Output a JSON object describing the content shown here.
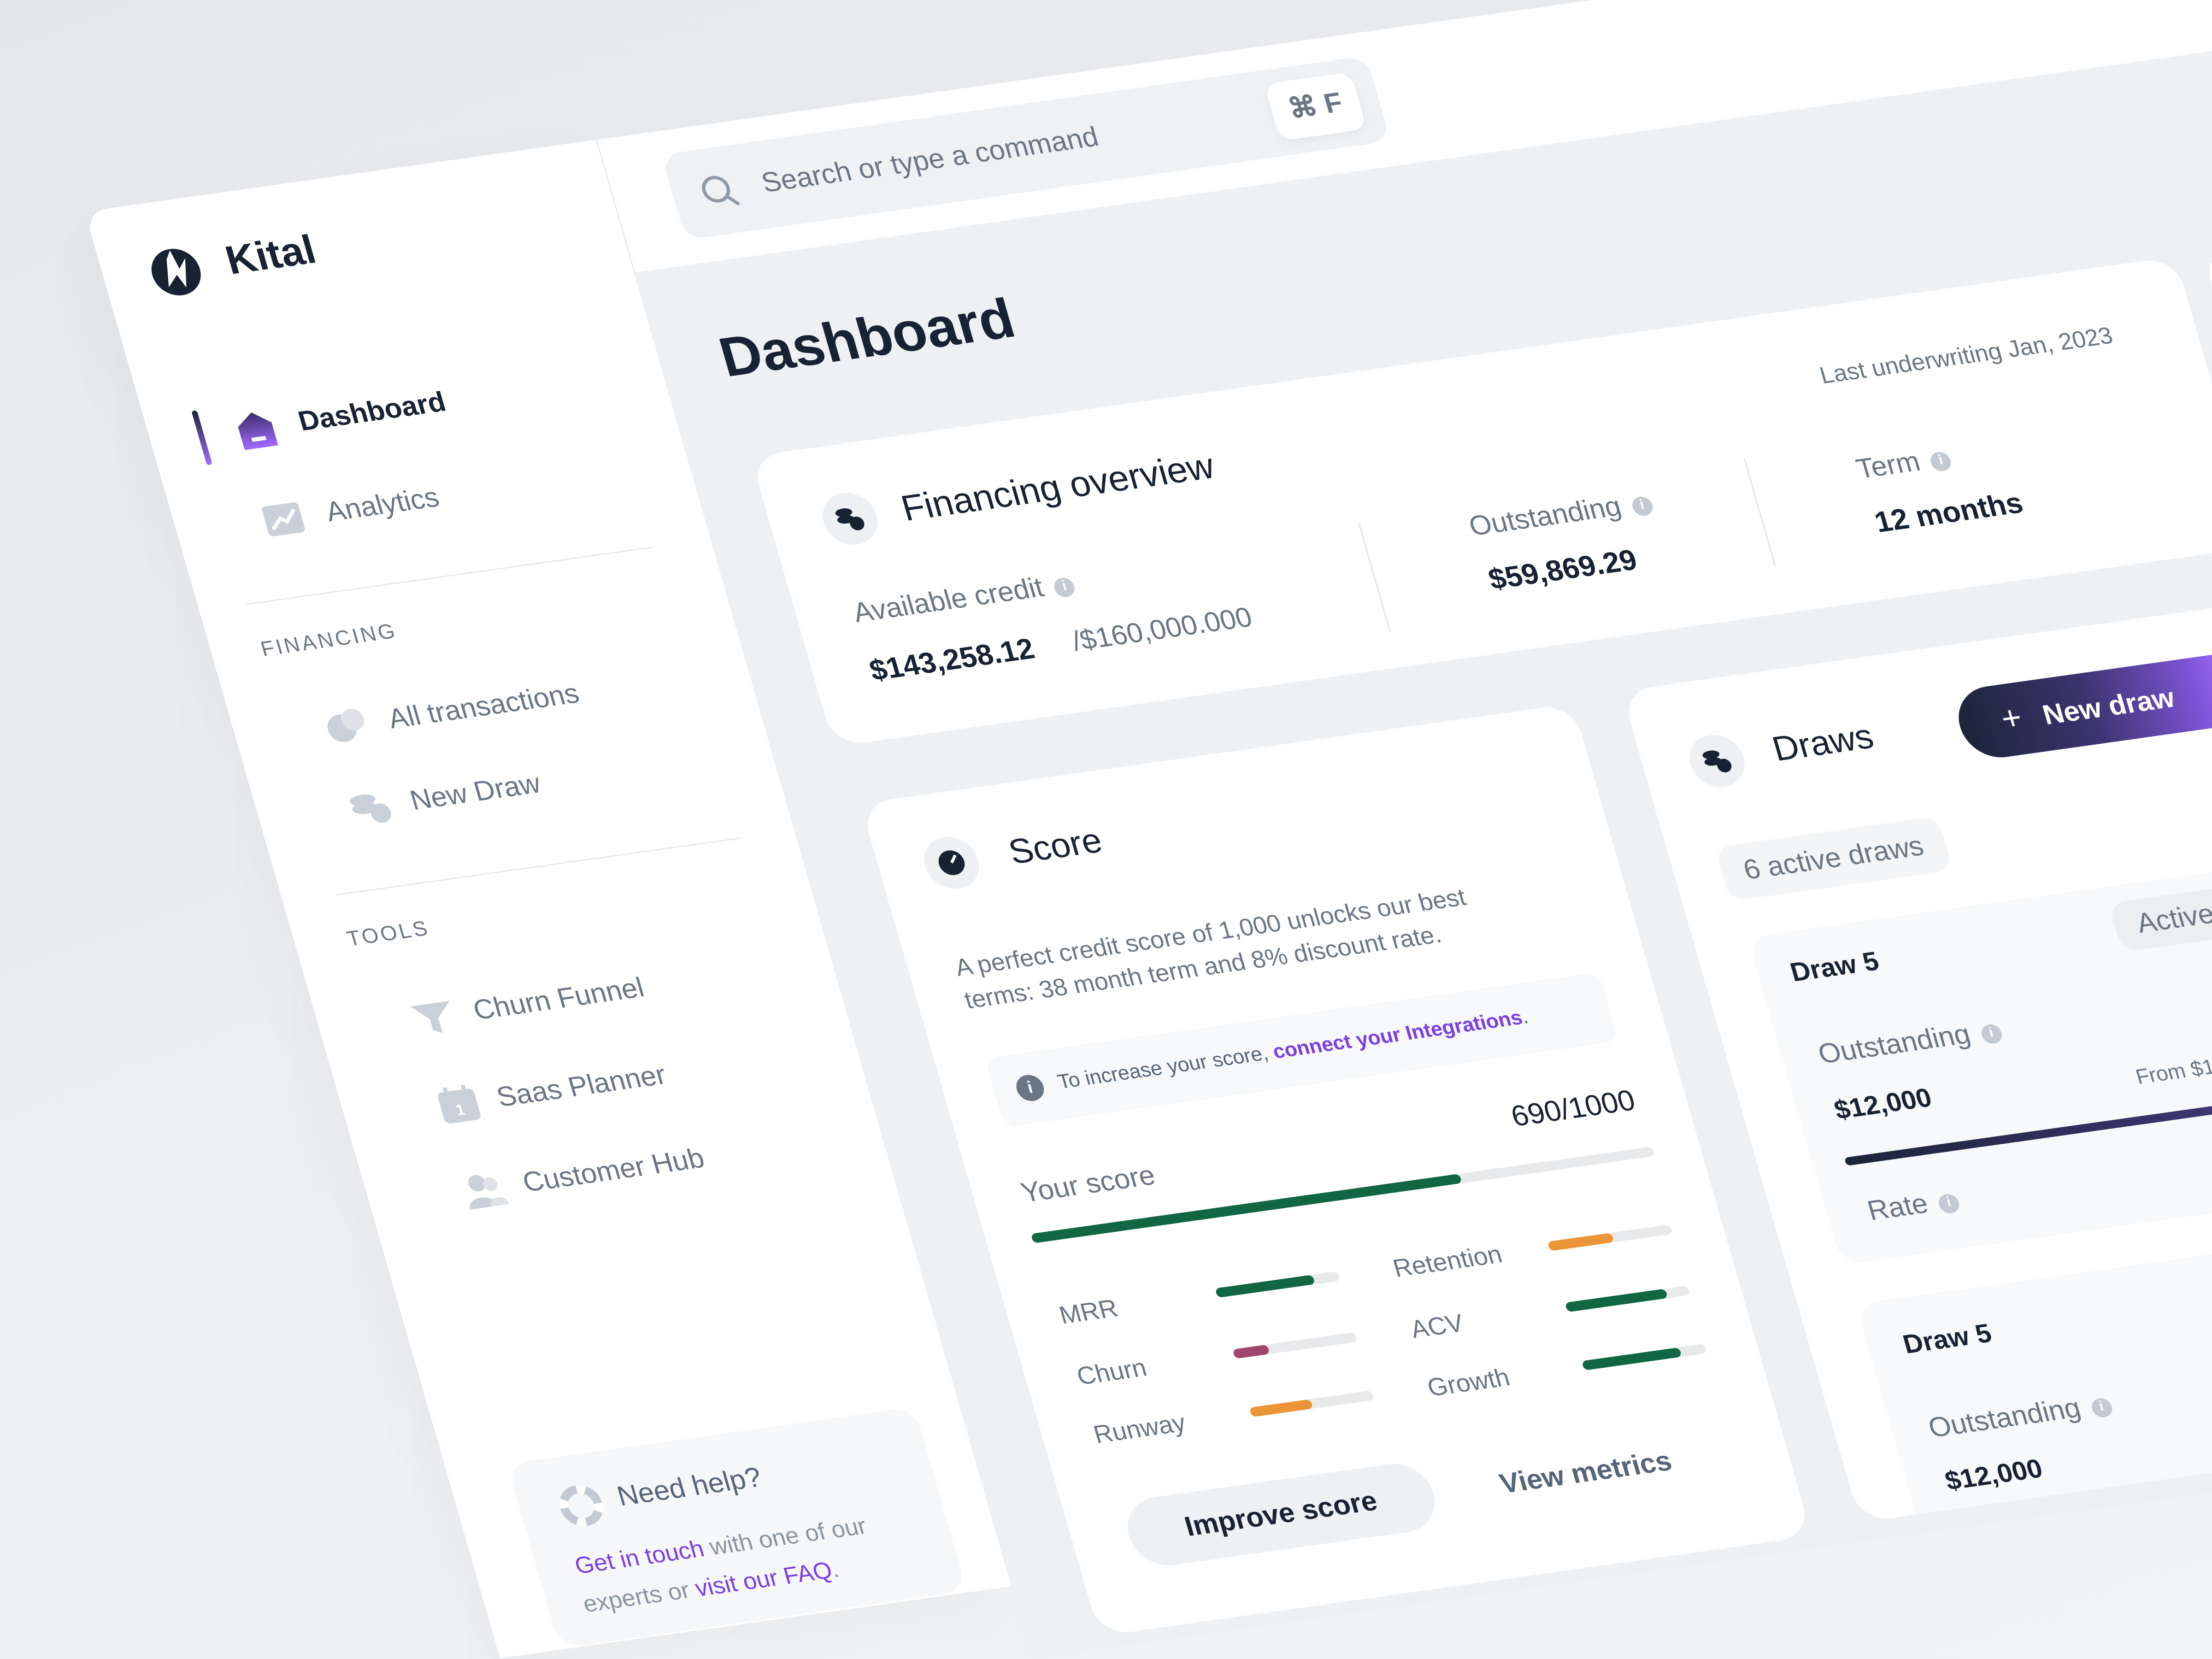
{
  "app": {
    "name": "Kital"
  },
  "search": {
    "placeholder": "Search or type a command",
    "shortcut": "⌘ F",
    "icon": "search-icon"
  },
  "sidebar": {
    "main_items": [
      {
        "label": "Dashboard",
        "icon": "home-icon",
        "active": true
      },
      {
        "label": "Analytics",
        "icon": "chart-icon",
        "active": false
      }
    ],
    "financing": {
      "heading": "FINANCING",
      "items": [
        {
          "label": "All transactions",
          "icon": "transactions-icon"
        },
        {
          "label": "New Draw",
          "icon": "coins-icon"
        }
      ]
    },
    "tools": {
      "heading": "TOOLS",
      "items": [
        {
          "label": "Churn Funnel",
          "icon": "funnel-icon"
        },
        {
          "label": "Saas Planner",
          "icon": "calendar-icon"
        },
        {
          "label": "Customer Hub",
          "icon": "users-icon"
        }
      ]
    },
    "help": {
      "title": "Need help?",
      "link1": "Get in touch",
      "text1": " with one of our",
      "text2": "experts or ",
      "link2": "visit our FAQ",
      "text3": "."
    }
  },
  "page": {
    "title": "Dashboard"
  },
  "financing": {
    "title": "Financing overview",
    "last_underwriting": "Last underwriting Jan, 2023",
    "available_label": "Available credit",
    "available_value": "$143,258.12",
    "available_total": "/$160,000.000",
    "outstanding_label": "Outstanding",
    "outstanding_value": "$59,869.29",
    "term_label": "Term",
    "term_value": "12 months"
  },
  "score": {
    "title": "Score",
    "desc_line1": "A perfect credit score of 1,000 unlocks our best",
    "desc_line2": "terms: 38 month term and 8% discount rate.",
    "tip_text": "To increase your score, ",
    "tip_link": "connect your Integrations",
    "tip_end": ".",
    "your_score_label": "Your score",
    "value": "690/1000",
    "fill": 0.69,
    "metrics": [
      {
        "label": "MRR",
        "fill": 0.8,
        "color": "#116644"
      },
      {
        "label": "Churn",
        "fill": 0.28,
        "color": "#a2456a"
      },
      {
        "label": "Runway",
        "fill": 0.5,
        "color": "#ec9438"
      },
      {
        "label": "Retention",
        "fill": 0.52,
        "color": "#ec9438"
      },
      {
        "label": "ACV",
        "fill": 0.82,
        "color": "#116644"
      },
      {
        "label": "Growth",
        "fill": 0.8,
        "color": "#116644"
      }
    ],
    "improve_button": "Improve score",
    "view_metrics": "View metrics"
  },
  "draws": {
    "title": "Draws",
    "new_button": "New draw",
    "new_button_icon": "+",
    "active_count": "6 active draws",
    "items": [
      {
        "name": "Draw 5",
        "status": "Active",
        "outstanding_label": "Outstanding",
        "outstanding_value": "$12,000",
        "from": "From $1",
        "rate_label": "Rate"
      },
      {
        "name": "Draw 5",
        "outstanding_label": "Outstanding",
        "outstanding_value": "$12,000"
      }
    ]
  },
  "colors": {
    "primary": "#172233",
    "accent_purple": "#7b3fe4",
    "score_green": "#116644",
    "warning_orange": "#ec9438",
    "churn_red": "#a2456a",
    "main_bg": "#eef1f4"
  }
}
